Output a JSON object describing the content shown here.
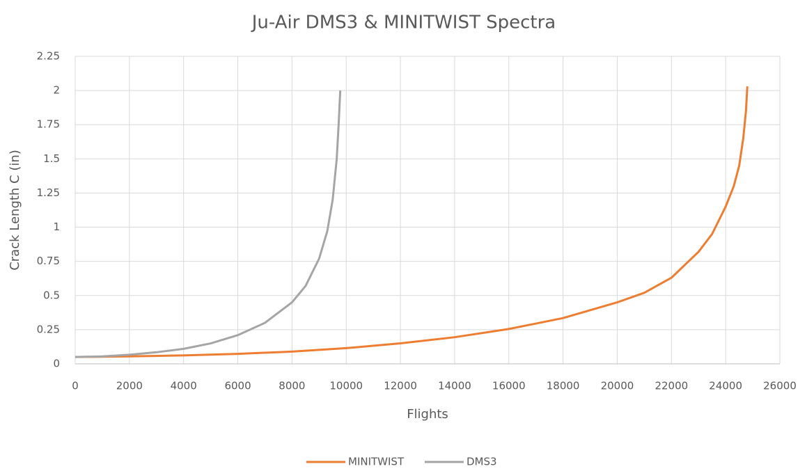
{
  "chart_data": {
    "type": "line",
    "title": "Ju-Air DMS3 & MINITWIST Spectra",
    "x_label": "Flights",
    "y_label": "Crack Length C (in)",
    "xlim": [
      0,
      26000
    ],
    "xticks": [
      0,
      2000,
      4000,
      6000,
      8000,
      10000,
      12000,
      14000,
      16000,
      18000,
      20000,
      22000,
      24000,
      26000
    ],
    "ylim": [
      0,
      2.25
    ],
    "yticks": [
      0,
      0.25,
      0.5,
      0.75,
      1,
      1.25,
      1.5,
      1.75,
      2,
      2.25
    ],
    "grid": true,
    "legend": "bottom",
    "series": [
      {
        "name": "MINITWIST",
        "color": "#ed7d31",
        "x": [
          0,
          2000,
          4000,
          6000,
          8000,
          10000,
          12000,
          14000,
          16000,
          18000,
          20000,
          21000,
          22000,
          23000,
          23500,
          24000,
          24300,
          24500,
          24650,
          24750,
          24800
        ],
        "values": [
          0.05,
          0.055,
          0.062,
          0.073,
          0.09,
          0.115,
          0.15,
          0.195,
          0.255,
          0.335,
          0.45,
          0.52,
          0.63,
          0.82,
          0.95,
          1.15,
          1.3,
          1.45,
          1.65,
          1.85,
          2.03
        ]
      },
      {
        "name": "DMS3",
        "color": "#a5a5a5",
        "x": [
          0,
          1000,
          2000,
          3000,
          4000,
          5000,
          6000,
          7000,
          8000,
          8500,
          9000,
          9300,
          9500,
          9650,
          9720,
          9780
        ],
        "values": [
          0.05,
          0.055,
          0.067,
          0.085,
          0.11,
          0.15,
          0.21,
          0.3,
          0.45,
          0.57,
          0.77,
          0.97,
          1.2,
          1.5,
          1.75,
          2.0
        ]
      }
    ]
  }
}
